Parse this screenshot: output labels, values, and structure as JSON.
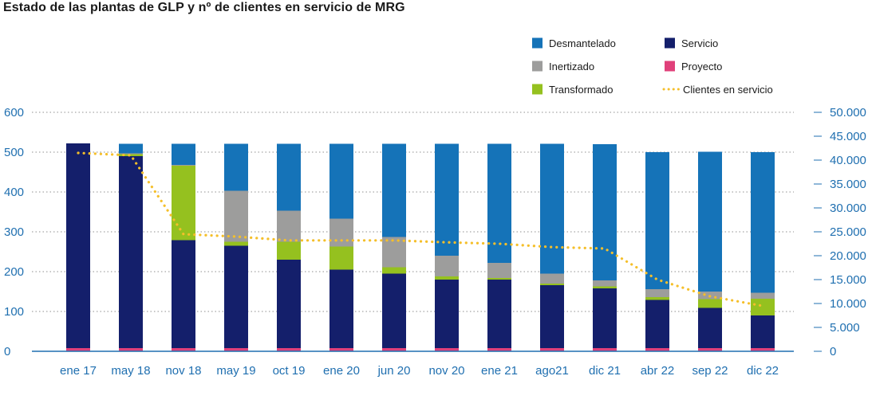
{
  "chart_data": {
    "type": "bar",
    "stacked": true,
    "title": "Estado de las plantas de GLP y nº de clientes en servicio de MRG",
    "categories": [
      "ene 17",
      "may 18",
      "nov 18",
      "may 19",
      "oct 19",
      "ene 20",
      "jun 20",
      "nov 20",
      "ene 21",
      "ago21",
      "dic 21",
      "abr 22",
      "sep 22",
      "dic 22"
    ],
    "series": [
      {
        "name": "Proyecto",
        "key": "proyecto",
        "color": "#e0407a",
        "values": [
          8,
          8,
          8,
          8,
          8,
          8,
          8,
          8,
          8,
          8,
          8,
          8,
          8,
          8
        ]
      },
      {
        "name": "Servicio",
        "key": "servicio",
        "color": "#141f6b",
        "values": [
          514,
          482,
          271,
          257,
          222,
          197,
          187,
          172,
          172,
          158,
          150,
          121,
          101,
          82
        ]
      },
      {
        "name": "Transformado",
        "key": "transformado",
        "color": "#95c11f",
        "values": [
          0,
          5,
          187,
          10,
          45,
          58,
          16,
          8,
          4,
          4,
          5,
          7,
          22,
          42
        ]
      },
      {
        "name": "Inertizado",
        "key": "inertizado",
        "color": "#9d9d9c",
        "values": [
          0,
          2,
          2,
          128,
          78,
          70,
          76,
          52,
          38,
          25,
          15,
          20,
          19,
          15
        ]
      },
      {
        "name": "Desmantelado",
        "key": "desmantelado",
        "color": "#1573b8",
        "values": [
          0,
          24,
          53,
          118,
          168,
          188,
          234,
          281,
          299,
          326,
          342,
          344,
          351,
          353
        ]
      }
    ],
    "line_series": {
      "name": "Clientes en servicio",
      "color": "#f5bf2a",
      "axis": "right",
      "values": [
        41500,
        41000,
        24500,
        24000,
        23200,
        23200,
        23200,
        22800,
        22500,
        21800,
        21500,
        15000,
        11500,
        9500
      ]
    },
    "y_left": {
      "min": 0,
      "max": 600,
      "ticks": [
        0,
        100,
        200,
        300,
        400,
        500,
        600
      ],
      "tick_labels": [
        "0",
        "100",
        "200",
        "300",
        "400",
        "500",
        "600"
      ]
    },
    "y_right": {
      "min": 0,
      "max": 50000,
      "ticks": [
        0,
        5000,
        10000,
        15000,
        20000,
        25000,
        30000,
        35000,
        40000,
        45000,
        50000
      ],
      "tick_labels": [
        "0",
        "5.000",
        "10.000",
        "15.000",
        "20.000",
        "25.000",
        "30.000",
        "35.000",
        "40.000",
        "45.000",
        "50.000"
      ]
    },
    "legend": [
      {
        "label": "Desmantelado",
        "key": "desmantelado",
        "kind": "box",
        "color": "#1573b8"
      },
      {
        "label": "Servicio",
        "key": "servicio",
        "kind": "box",
        "color": "#141f6b"
      },
      {
        "label": "Inertizado",
        "key": "inertizado",
        "kind": "box",
        "color": "#9d9d9c"
      },
      {
        "label": "Proyecto",
        "key": "proyecto",
        "kind": "box",
        "color": "#e0407a"
      },
      {
        "label": "Transformado",
        "key": "transformado",
        "kind": "box",
        "color": "#95c11f"
      },
      {
        "label": "Clientes en servicio",
        "key": "clientes",
        "kind": "line",
        "color": "#f5bf2a"
      }
    ],
    "legend_position": "top-right",
    "grid": "dotted horizontal",
    "axis_color": "#1f6fb0"
  }
}
